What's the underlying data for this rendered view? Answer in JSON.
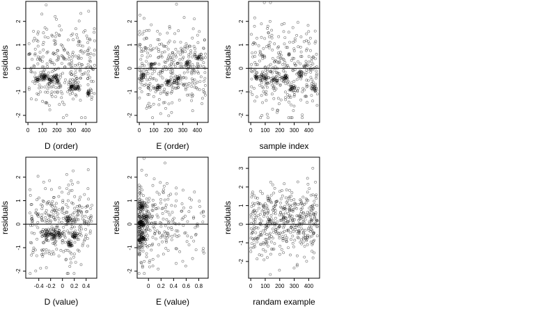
{
  "chart_data": [
    {
      "type": "scatter",
      "xlabel": "D (order)",
      "ylabel": "residuals",
      "xlim": [
        -15,
        475
      ],
      "ylim": [
        -2.3,
        2.85
      ],
      "xticks": [
        0,
        100,
        200,
        300,
        400
      ],
      "yticks": [
        -2,
        -1,
        0,
        1,
        2
      ],
      "hline": 0,
      "points": {
        "n": 460,
        "x_min": 0,
        "x_max": 460,
        "y_min": -2.1,
        "y_max": 2.8,
        "clusters": [
          [
            75,
            -0.45
          ],
          [
            110,
            -0.35
          ],
          [
            150,
            -0.5
          ],
          [
            200,
            -0.4
          ],
          [
            300,
            -0.8
          ],
          [
            340,
            -0.85
          ],
          [
            420,
            -1.0
          ]
        ]
      }
    },
    {
      "type": "scatter",
      "xlabel": "E (order)",
      "ylabel": "residuals",
      "xlim": [
        -15,
        475
      ],
      "ylim": [
        -2.3,
        2.85
      ],
      "xticks": [
        0,
        100,
        200,
        300,
        400
      ],
      "yticks": [
        -2,
        -1,
        0,
        1,
        2
      ],
      "hline": 0,
      "points": {
        "n": 460,
        "x_min": 0,
        "x_max": 460,
        "y_min": -2.1,
        "y_max": 2.8,
        "clusters": [
          [
            20,
            -0.4
          ],
          [
            90,
            0.1
          ],
          [
            130,
            -0.85
          ],
          [
            200,
            -0.6
          ],
          [
            260,
            -0.5
          ],
          [
            330,
            0.2
          ],
          [
            410,
            0.5
          ]
        ]
      }
    },
    {
      "type": "scatter",
      "xlabel": "sample index",
      "ylabel": "residuals",
      "xlim": [
        -15,
        475
      ],
      "ylim": [
        -2.3,
        2.85
      ],
      "xticks": [
        0,
        100,
        200,
        300,
        400
      ],
      "yticks": [
        -2,
        -1,
        0,
        1,
        2
      ],
      "hline": 0,
      "points": {
        "n": 460,
        "x_min": 0,
        "x_max": 460,
        "y_min": -2.1,
        "y_max": 2.8,
        "clusters": [
          [
            40,
            -0.4
          ],
          [
            90,
            -0.4
          ],
          [
            170,
            -0.5
          ],
          [
            240,
            -0.4
          ],
          [
            290,
            -0.85
          ],
          [
            340,
            -0.2
          ],
          [
            440,
            -0.85
          ]
        ]
      }
    },
    {
      "type": "scatter",
      "xlabel": "D (value)",
      "ylabel": "residuals",
      "xlim": [
        -0.62,
        0.58
      ],
      "ylim": [
        -2.3,
        2.85
      ],
      "xticks": [
        -0.4,
        -0.2,
        0.0,
        0.2,
        0.4
      ],
      "yticks": [
        -2,
        -1,
        0,
        1,
        2
      ],
      "hline": 0,
      "points": {
        "n": 460,
        "x_min": -0.55,
        "x_max": 0.5,
        "y_min": -2.1,
        "y_max": 2.8,
        "clusters": [
          [
            -0.25,
            -0.4
          ],
          [
            -0.15,
            -0.5
          ],
          [
            -0.05,
            -0.45
          ],
          [
            0.1,
            0.2
          ],
          [
            0.12,
            -0.85
          ],
          [
            0.2,
            -0.5
          ]
        ]
      }
    },
    {
      "type": "scatter",
      "xlabel": "E (value)",
      "ylabel": "residuals",
      "xlim": [
        -0.18,
        0.95
      ],
      "ylim": [
        -2.3,
        2.85
      ],
      "xticks": [
        0.0,
        0.2,
        0.4,
        0.6,
        0.8
      ],
      "yticks": [
        -2,
        -1,
        0,
        1,
        2
      ],
      "hline": 0,
      "points": {
        "n": 460,
        "x_min": -0.15,
        "x_max": 0.9,
        "y_min": -2.1,
        "y_max": 2.8,
        "clusters": [
          [
            -0.12,
            0.0
          ],
          [
            -0.11,
            -0.6
          ],
          [
            -0.1,
            0.8
          ],
          [
            -0.05,
            0.3
          ]
        ]
      }
    },
    {
      "type": "scatter",
      "xlabel": "randam example",
      "ylabel": "residuals",
      "xlim": [
        -15,
        475
      ],
      "ylim": [
        -2.9,
        3.6
      ],
      "xticks": [
        0,
        100,
        200,
        300,
        400
      ],
      "yticks": [
        -2,
        -1,
        0,
        1,
        2,
        3
      ],
      "hline": 0,
      "points": {
        "n": 460,
        "x_min": 0,
        "x_max": 460,
        "y_min": -2.7,
        "y_max": 3.3,
        "clusters": []
      }
    }
  ]
}
